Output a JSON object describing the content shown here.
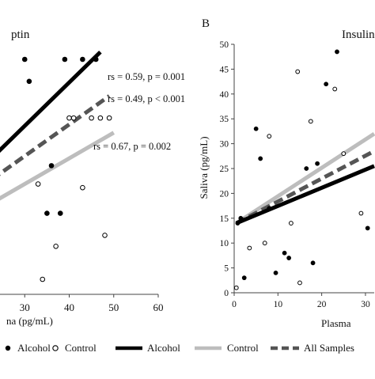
{
  "panel_a": {
    "title_fragment": "ptin",
    "x_axis_fragment": "na (pg/mL)",
    "annotations": [
      {
        "text": "rs = 0.59, p = 0.001"
      },
      {
        "text": "rs = 0.49, p < 0.001"
      },
      {
        "text": "rs = 0.67, p = 0.002"
      }
    ]
  },
  "panel_b": {
    "letter": "B",
    "title_fragment": "Insulin",
    "x_axis_fragment": "Plasma"
  },
  "legend": {
    "items": [
      {
        "label": "Alcohol",
        "kind": "filled-marker"
      },
      {
        "label": "Control",
        "kind": "open-marker"
      },
      {
        "label": "Alcohol",
        "kind": "line",
        "color": "#000000"
      },
      {
        "label": "Control",
        "kind": "line",
        "color": "#bdbdbd"
      },
      {
        "label": "All Samples",
        "kind": "dashed-line",
        "color": "#555555"
      }
    ]
  },
  "chart_data": [
    {
      "type": "scatter",
      "title": "ptin",
      "xlabel": "na (pg/mL)",
      "ylabel": "",
      "xlim": [
        20,
        60
      ],
      "ylim": [
        0,
        60
      ],
      "xticks": [
        30,
        40,
        50,
        60
      ],
      "series": [
        {
          "name": "Alcohol",
          "marker": "filled",
          "points": [
            [
              30,
              60
            ],
            [
              39,
              60
            ],
            [
              43,
              60
            ],
            [
              46,
              60
            ],
            [
              31,
              54
            ],
            [
              36,
              31
            ],
            [
              35,
              18
            ],
            [
              38,
              18
            ],
            [
              21,
              12
            ]
          ]
        },
        {
          "name": "Control",
          "marker": "open",
          "points": [
            [
              40,
              44
            ],
            [
              41,
              44
            ],
            [
              45,
              44
            ],
            [
              47,
              44
            ],
            [
              49,
              44
            ],
            [
              33,
              26
            ],
            [
              43,
              25
            ],
            [
              37,
              9
            ],
            [
              48,
              12
            ],
            [
              34,
              0
            ]
          ]
        }
      ],
      "fits": [
        {
          "name": "Alcohol",
          "style": "solid",
          "color": "#000000",
          "x": [
            20,
            47
          ],
          "y": [
            30,
            62
          ]
        },
        {
          "name": "All Samples",
          "style": "dashed",
          "color": "#555555",
          "x": [
            20,
            49
          ],
          "y": [
            25,
            50
          ]
        },
        {
          "name": "Control",
          "style": "solid",
          "color": "#bdbdbd",
          "x": [
            20,
            50
          ],
          "y": [
            19,
            40
          ]
        }
      ]
    },
    {
      "type": "scatter",
      "title": "Insulin",
      "xlabel": "Plasma",
      "ylabel": "Saliva (pg/mL)",
      "xlim": [
        0,
        32
      ],
      "ylim": [
        0,
        50
      ],
      "xticks": [
        0,
        10,
        20,
        30
      ],
      "yticks": [
        0,
        5,
        10,
        15,
        20,
        25,
        30,
        35,
        40,
        45,
        50
      ],
      "series": [
        {
          "name": "Alcohol",
          "marker": "filled",
          "points": [
            [
              0.8,
              14
            ],
            [
              1.5,
              15
            ],
            [
              2.3,
              3
            ],
            [
              5,
              33
            ],
            [
              6,
              27
            ],
            [
              8,
              17
            ],
            [
              9.5,
              4
            ],
            [
              11.5,
              8
            ],
            [
              12.5,
              7
            ],
            [
              16.5,
              25
            ],
            [
              18,
              6
            ],
            [
              19,
              26
            ],
            [
              21,
              42
            ],
            [
              23.5,
              48.5
            ],
            [
              30.5,
              13
            ]
          ]
        },
        {
          "name": "Control",
          "marker": "open",
          "points": [
            [
              0.5,
              1
            ],
            [
              3.5,
              9
            ],
            [
              7,
              10
            ],
            [
              8,
              31.5
            ],
            [
              13,
              14
            ],
            [
              14.5,
              44.5
            ],
            [
              15,
              2
            ],
            [
              17.5,
              34.5
            ],
            [
              23,
              41
            ],
            [
              25,
              28
            ],
            [
              29,
              16
            ]
          ]
        }
      ],
      "fits": [
        {
          "name": "Control",
          "style": "solid",
          "color": "#bdbdbd",
          "x": [
            0.5,
            32
          ],
          "y": [
            14,
            32
          ]
        },
        {
          "name": "All Samples",
          "style": "dashed",
          "color": "#555555",
          "x": [
            0.5,
            32
          ],
          "y": [
            14,
            28.5
          ]
        },
        {
          "name": "Alcohol",
          "style": "solid",
          "color": "#000000",
          "x": [
            0.5,
            32
          ],
          "y": [
            14,
            25.5
          ]
        }
      ]
    }
  ]
}
